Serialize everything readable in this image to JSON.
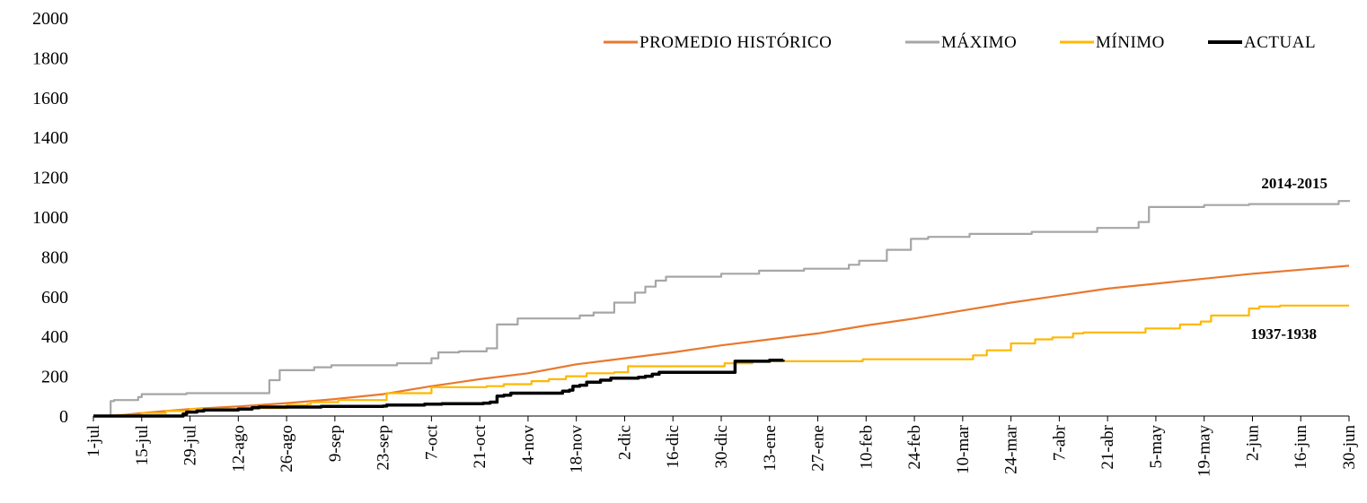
{
  "chart_data": {
    "type": "line",
    "title": "",
    "xlabel": "",
    "ylabel": "",
    "ylim": [
      0,
      2000
    ],
    "yticks": [
      0,
      200,
      400,
      600,
      800,
      1000,
      1200,
      1400,
      1600,
      1800,
      2000
    ],
    "xlim": [
      0,
      364
    ],
    "x_unit": "day of hydrological year starting 1-jul",
    "xticks": [
      {
        "day": 0,
        "label": "1-jul"
      },
      {
        "day": 14,
        "label": "15-jul"
      },
      {
        "day": 28,
        "label": "29-jul"
      },
      {
        "day": 42,
        "label": "12-ago"
      },
      {
        "day": 56,
        "label": "26-ago"
      },
      {
        "day": 70,
        "label": "9-sep"
      },
      {
        "day": 84,
        "label": "23-sep"
      },
      {
        "day": 98,
        "label": "7-oct"
      },
      {
        "day": 112,
        "label": "21-oct"
      },
      {
        "day": 126,
        "label": "4-nov"
      },
      {
        "day": 140,
        "label": "18-nov"
      },
      {
        "day": 154,
        "label": "2-dic"
      },
      {
        "day": 168,
        "label": "16-dic"
      },
      {
        "day": 182,
        "label": "30-dic"
      },
      {
        "day": 196,
        "label": "13-ene"
      },
      {
        "day": 210,
        "label": "27-ene"
      },
      {
        "day": 224,
        "label": "10-feb"
      },
      {
        "day": 238,
        "label": "24-feb"
      },
      {
        "day": 252,
        "label": "10-mar"
      },
      {
        "day": 266,
        "label": "24-mar"
      },
      {
        "day": 280,
        "label": "7-abr"
      },
      {
        "day": 294,
        "label": "21-abr"
      },
      {
        "day": 308,
        "label": "5-may"
      },
      {
        "day": 322,
        "label": "19-may"
      },
      {
        "day": 336,
        "label": "2-jun"
      },
      {
        "day": 350,
        "label": "16-jun"
      },
      {
        "day": 364,
        "label": "30-jun"
      }
    ],
    "legend_position": "top-right",
    "series": [
      {
        "name": "PROMEDIO HISTÓRICO",
        "color": "#E8782E",
        "step": false,
        "points": [
          [
            0,
            0
          ],
          [
            7,
            3
          ],
          [
            14,
            15
          ],
          [
            21,
            25
          ],
          [
            28,
            35
          ],
          [
            42,
            48
          ],
          [
            56,
            65
          ],
          [
            70,
            85
          ],
          [
            84,
            110
          ],
          [
            98,
            150
          ],
          [
            112,
            185
          ],
          [
            126,
            215
          ],
          [
            140,
            260
          ],
          [
            154,
            290
          ],
          [
            168,
            320
          ],
          [
            182,
            355
          ],
          [
            196,
            385
          ],
          [
            210,
            415
          ],
          [
            224,
            455
          ],
          [
            238,
            490
          ],
          [
            252,
            530
          ],
          [
            266,
            570
          ],
          [
            280,
            605
          ],
          [
            294,
            640
          ],
          [
            308,
            665
          ],
          [
            322,
            690
          ],
          [
            336,
            715
          ],
          [
            350,
            735
          ],
          [
            364,
            755
          ]
        ]
      },
      {
        "name": "MÁXIMO",
        "color": "#A6A6A6",
        "step": true,
        "points": [
          [
            0,
            0
          ],
          [
            4,
            0
          ],
          [
            5,
            75
          ],
          [
            6,
            80
          ],
          [
            12,
            80
          ],
          [
            13,
            95
          ],
          [
            14,
            110
          ],
          [
            26,
            110
          ],
          [
            27,
            115
          ],
          [
            50,
            115
          ],
          [
            51,
            180
          ],
          [
            54,
            230
          ],
          [
            63,
            230
          ],
          [
            64,
            245
          ],
          [
            69,
            255
          ],
          [
            86,
            255
          ],
          [
            88,
            265
          ],
          [
            97,
            265
          ],
          [
            98,
            290
          ],
          [
            99,
            290
          ],
          [
            100,
            320
          ],
          [
            105,
            320
          ],
          [
            106,
            325
          ],
          [
            113,
            325
          ],
          [
            114,
            340
          ],
          [
            116,
            340
          ],
          [
            117,
            460
          ],
          [
            122,
            460
          ],
          [
            123,
            490
          ],
          [
            140,
            490
          ],
          [
            141,
            505
          ],
          [
            144,
            505
          ],
          [
            145,
            520
          ],
          [
            150,
            520
          ],
          [
            151,
            570
          ],
          [
            156,
            570
          ],
          [
            157,
            620
          ],
          [
            159,
            620
          ],
          [
            160,
            650
          ],
          [
            162,
            650
          ],
          [
            163,
            680
          ],
          [
            165,
            680
          ],
          [
            166,
            700
          ],
          [
            181,
            700
          ],
          [
            182,
            715
          ],
          [
            192,
            715
          ],
          [
            193,
            730
          ],
          [
            205,
            730
          ],
          [
            206,
            740
          ],
          [
            218,
            740
          ],
          [
            219,
            760
          ],
          [
            221,
            760
          ],
          [
            222,
            780
          ],
          [
            229,
            780
          ],
          [
            230,
            835
          ],
          [
            236,
            835
          ],
          [
            237,
            890
          ],
          [
            241,
            890
          ],
          [
            242,
            900
          ],
          [
            253,
            900
          ],
          [
            254,
            915
          ],
          [
            271,
            915
          ],
          [
            272,
            925
          ],
          [
            290,
            925
          ],
          [
            291,
            945
          ],
          [
            302,
            945
          ],
          [
            303,
            975
          ],
          [
            305,
            975
          ],
          [
            306,
            1050
          ],
          [
            321,
            1050
          ],
          [
            322,
            1060
          ],
          [
            334,
            1060
          ],
          [
            335,
            1065
          ],
          [
            360,
            1065
          ],
          [
            361,
            1080
          ],
          [
            364,
            1085
          ]
        ]
      },
      {
        "name": "MÍNIMO",
        "color": "#FFB800",
        "step": true,
        "points": [
          [
            0,
            0
          ],
          [
            7,
            5
          ],
          [
            14,
            15
          ],
          [
            21,
            25
          ],
          [
            28,
            35
          ],
          [
            42,
            40
          ],
          [
            56,
            55
          ],
          [
            62,
            60
          ],
          [
            63,
            70
          ],
          [
            70,
            70
          ],
          [
            71,
            80
          ],
          [
            84,
            80
          ],
          [
            85,
            115
          ],
          [
            97,
            115
          ],
          [
            98,
            145
          ],
          [
            112,
            145
          ],
          [
            114,
            150
          ],
          [
            118,
            150
          ],
          [
            119,
            160
          ],
          [
            126,
            160
          ],
          [
            127,
            175
          ],
          [
            131,
            175
          ],
          [
            132,
            185
          ],
          [
            136,
            185
          ],
          [
            137,
            200
          ],
          [
            142,
            200
          ],
          [
            143,
            215
          ],
          [
            150,
            215
          ],
          [
            151,
            220
          ],
          [
            154,
            220
          ],
          [
            155,
            250
          ],
          [
            182,
            250
          ],
          [
            183,
            265
          ],
          [
            190,
            265
          ],
          [
            191,
            275
          ],
          [
            222,
            275
          ],
          [
            223,
            285
          ],
          [
            254,
            285
          ],
          [
            255,
            305
          ],
          [
            258,
            305
          ],
          [
            259,
            330
          ],
          [
            265,
            330
          ],
          [
            266,
            365
          ],
          [
            272,
            365
          ],
          [
            273,
            385
          ],
          [
            277,
            385
          ],
          [
            278,
            395
          ],
          [
            283,
            395
          ],
          [
            284,
            415
          ],
          [
            286,
            415
          ],
          [
            287,
            420
          ],
          [
            304,
            420
          ],
          [
            305,
            440
          ],
          [
            314,
            440
          ],
          [
            315,
            460
          ],
          [
            320,
            460
          ],
          [
            321,
            475
          ],
          [
            323,
            475
          ],
          [
            324,
            505
          ],
          [
            334,
            505
          ],
          [
            335,
            540
          ],
          [
            337,
            540
          ],
          [
            338,
            550
          ],
          [
            343,
            550
          ],
          [
            344,
            555
          ],
          [
            364,
            555
          ]
        ]
      },
      {
        "name": "ACTUAL",
        "color": "#000000",
        "step": true,
        "points": [
          [
            0,
            0
          ],
          [
            25,
            0
          ],
          [
            26,
            10
          ],
          [
            27,
            20
          ],
          [
            30,
            25
          ],
          [
            32,
            30
          ],
          [
            41,
            30
          ],
          [
            42,
            35
          ],
          [
            45,
            35
          ],
          [
            46,
            42
          ],
          [
            48,
            45
          ],
          [
            60,
            45
          ],
          [
            66,
            48
          ],
          [
            84,
            50
          ],
          [
            85,
            55
          ],
          [
            95,
            55
          ],
          [
            96,
            60
          ],
          [
            101,
            62
          ],
          [
            113,
            65
          ],
          [
            115,
            70
          ],
          [
            117,
            100
          ],
          [
            119,
            105
          ],
          [
            121,
            115
          ],
          [
            135,
            115
          ],
          [
            136,
            125
          ],
          [
            138,
            130
          ],
          [
            139,
            150
          ],
          [
            141,
            155
          ],
          [
            143,
            170
          ],
          [
            147,
            180
          ],
          [
            150,
            190
          ],
          [
            158,
            195
          ],
          [
            160,
            200
          ],
          [
            162,
            210
          ],
          [
            164,
            220
          ],
          [
            185,
            220
          ],
          [
            186,
            275
          ],
          [
            196,
            280
          ],
          [
            200,
            282
          ]
        ]
      }
    ],
    "annotations": [
      {
        "text": "2014-2015",
        "series": "MÁXIMO"
      },
      {
        "text": "1937-1938",
        "series": "MÍNIMO"
      }
    ]
  }
}
